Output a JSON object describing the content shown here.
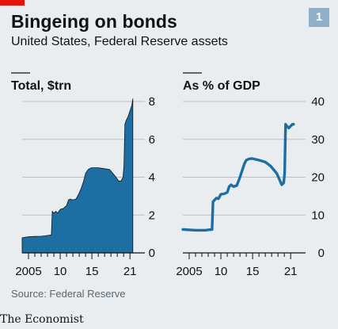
{
  "header": {
    "title": "Bingeing on bonds",
    "subtitle": "United States, Federal Reserve assets",
    "chart_number": "1"
  },
  "footer": {
    "source": "Source: Federal Reserve",
    "logo": "The Economist"
  },
  "colors": {
    "series": "#1d6fa3",
    "series_fill": "#1d6fa3",
    "accent_red": "#e3120b",
    "badge": "#8fb0c8",
    "background": "#e9edf0"
  },
  "chart_data": [
    {
      "type": "area",
      "title": "Total, $trn",
      "xlim": [
        2004,
        2021.6
      ],
      "ylim": [
        0,
        8
      ],
      "yticks": [
        0,
        2,
        4,
        6,
        8
      ],
      "xtick_labels": [
        {
          "value": 2005,
          "label": "2005"
        },
        {
          "value": 2010,
          "label": "10"
        },
        {
          "value": 2015,
          "label": "15"
        },
        {
          "value": 2021,
          "label": "21"
        }
      ],
      "grid": true,
      "x": [
        2004.0,
        2005.0,
        2006.0,
        2007.0,
        2007.6,
        2008.0,
        2008.6,
        2008.75,
        2009.0,
        2009.3,
        2009.6,
        2010.0,
        2010.5,
        2011.0,
        2011.3,
        2011.6,
        2012.0,
        2012.5,
        2012.9,
        2013.3,
        2013.7,
        2014.0,
        2014.4,
        2014.8,
        2015.0,
        2016.0,
        2017.0,
        2017.8,
        2018.3,
        2018.8,
        2019.2,
        2019.6,
        2019.9,
        2020.05,
        2020.2,
        2020.4,
        2020.7,
        2021.0,
        2021.3,
        2021.45
      ],
      "y": [
        0.8,
        0.85,
        0.87,
        0.88,
        0.9,
        0.92,
        0.95,
        2.2,
        2.1,
        2.2,
        2.1,
        2.3,
        2.35,
        2.5,
        2.8,
        2.85,
        2.8,
        2.85,
        3.1,
        3.4,
        3.8,
        4.2,
        4.4,
        4.48,
        4.5,
        4.5,
        4.45,
        4.4,
        4.2,
        4.0,
        3.8,
        3.8,
        4.0,
        4.6,
        6.8,
        7.0,
        7.2,
        7.5,
        7.8,
        8.15
      ]
    },
    {
      "type": "line",
      "title": "As % of GDP",
      "xlim": [
        2004,
        2021.6
      ],
      "ylim": [
        0,
        40
      ],
      "yticks": [
        0,
        10,
        20,
        30,
        40
      ],
      "xtick_labels": [
        {
          "value": 2005,
          "label": "2005"
        },
        {
          "value": 2010,
          "label": "10"
        },
        {
          "value": 2015,
          "label": "15"
        },
        {
          "value": 2021,
          "label": "21"
        }
      ],
      "grid": true,
      "x": [
        2004.0,
        2005.0,
        2006.0,
        2007.0,
        2007.6,
        2008.0,
        2008.6,
        2008.75,
        2009.0,
        2009.3,
        2009.6,
        2010.0,
        2010.5,
        2011.0,
        2011.3,
        2011.6,
        2012.0,
        2012.5,
        2012.9,
        2013.3,
        2013.7,
        2014.0,
        2014.4,
        2014.8,
        2015.0,
        2016.0,
        2017.0,
        2017.8,
        2018.3,
        2018.8,
        2019.2,
        2019.6,
        2019.9,
        2020.05,
        2020.2,
        2020.4,
        2020.7,
        2021.0,
        2021.3,
        2021.45
      ],
      "y": [
        6.2,
        6.1,
        6.0,
        6.0,
        6.0,
        6.1,
        6.2,
        13.5,
        14.0,
        14.5,
        14.3,
        15.5,
        15.6,
        16.0,
        17.5,
        18.0,
        17.5,
        17.8,
        19.5,
        21.5,
        23.5,
        24.5,
        24.8,
        24.9,
        24.9,
        24.5,
        24.0,
        23.0,
        22.0,
        21.0,
        19.5,
        18.0,
        18.5,
        21.0,
        34.0,
        33.5,
        33.0,
        33.5,
        34.0,
        34.0
      ]
    }
  ]
}
